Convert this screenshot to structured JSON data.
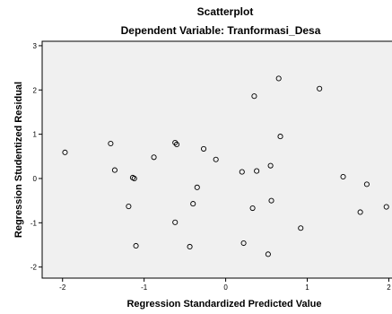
{
  "chart_data": {
    "type": "scatter",
    "title": "Scatterplot",
    "subtitle": "Dependent Variable: Tranformasi_Desa",
    "xlabel": "Regression Standardized Predicted Value",
    "ylabel": "Regression Studentized Residual",
    "xlim": [
      -2.25,
      2.05
    ],
    "ylim": [
      -2.25,
      3.1
    ],
    "xticks": [
      -2,
      -1,
      0,
      1,
      2
    ],
    "yticks": [
      -2,
      -1,
      0,
      1,
      2,
      3
    ],
    "xtick_labels": [
      "-2",
      "-1",
      "0",
      "1",
      "2"
    ],
    "ytick_labels": [
      "-2",
      "-1",
      "0",
      "1",
      "2",
      "3"
    ],
    "grid": false,
    "marker": "hollow-circle",
    "colors": {
      "plot_background": "#f0f0f0",
      "frame": "#000000",
      "marker_edge": "#000000"
    },
    "points": [
      {
        "x": -1.97,
        "y": 0.59
      },
      {
        "x": -1.41,
        "y": 0.79
      },
      {
        "x": -1.36,
        "y": 0.19
      },
      {
        "x": -1.19,
        "y": -0.63
      },
      {
        "x": -1.14,
        "y": 0.02
      },
      {
        "x": -1.12,
        "y": 0.0
      },
      {
        "x": -1.1,
        "y": -1.52
      },
      {
        "x": -0.88,
        "y": 0.48
      },
      {
        "x": -0.62,
        "y": 0.81
      },
      {
        "x": -0.6,
        "y": 0.77
      },
      {
        "x": -0.62,
        "y": -0.99
      },
      {
        "x": -0.44,
        "y": -1.54
      },
      {
        "x": -0.4,
        "y": -0.57
      },
      {
        "x": -0.35,
        "y": -0.2
      },
      {
        "x": -0.27,
        "y": 0.67
      },
      {
        "x": -0.12,
        "y": 0.43
      },
      {
        "x": 0.2,
        "y": 0.15
      },
      {
        "x": 0.22,
        "y": -1.46
      },
      {
        "x": 0.33,
        "y": -0.67
      },
      {
        "x": 0.35,
        "y": 1.86
      },
      {
        "x": 0.38,
        "y": 0.17
      },
      {
        "x": 0.52,
        "y": -1.71
      },
      {
        "x": 0.55,
        "y": 0.29
      },
      {
        "x": 0.56,
        "y": -0.5
      },
      {
        "x": 0.65,
        "y": 2.26
      },
      {
        "x": 0.67,
        "y": 0.95
      },
      {
        "x": 0.92,
        "y": -1.12
      },
      {
        "x": 1.15,
        "y": 2.03
      },
      {
        "x": 1.44,
        "y": 0.04
      },
      {
        "x": 1.65,
        "y": -0.76
      },
      {
        "x": 1.73,
        "y": -0.13
      },
      {
        "x": 1.97,
        "y": -0.64
      }
    ]
  }
}
